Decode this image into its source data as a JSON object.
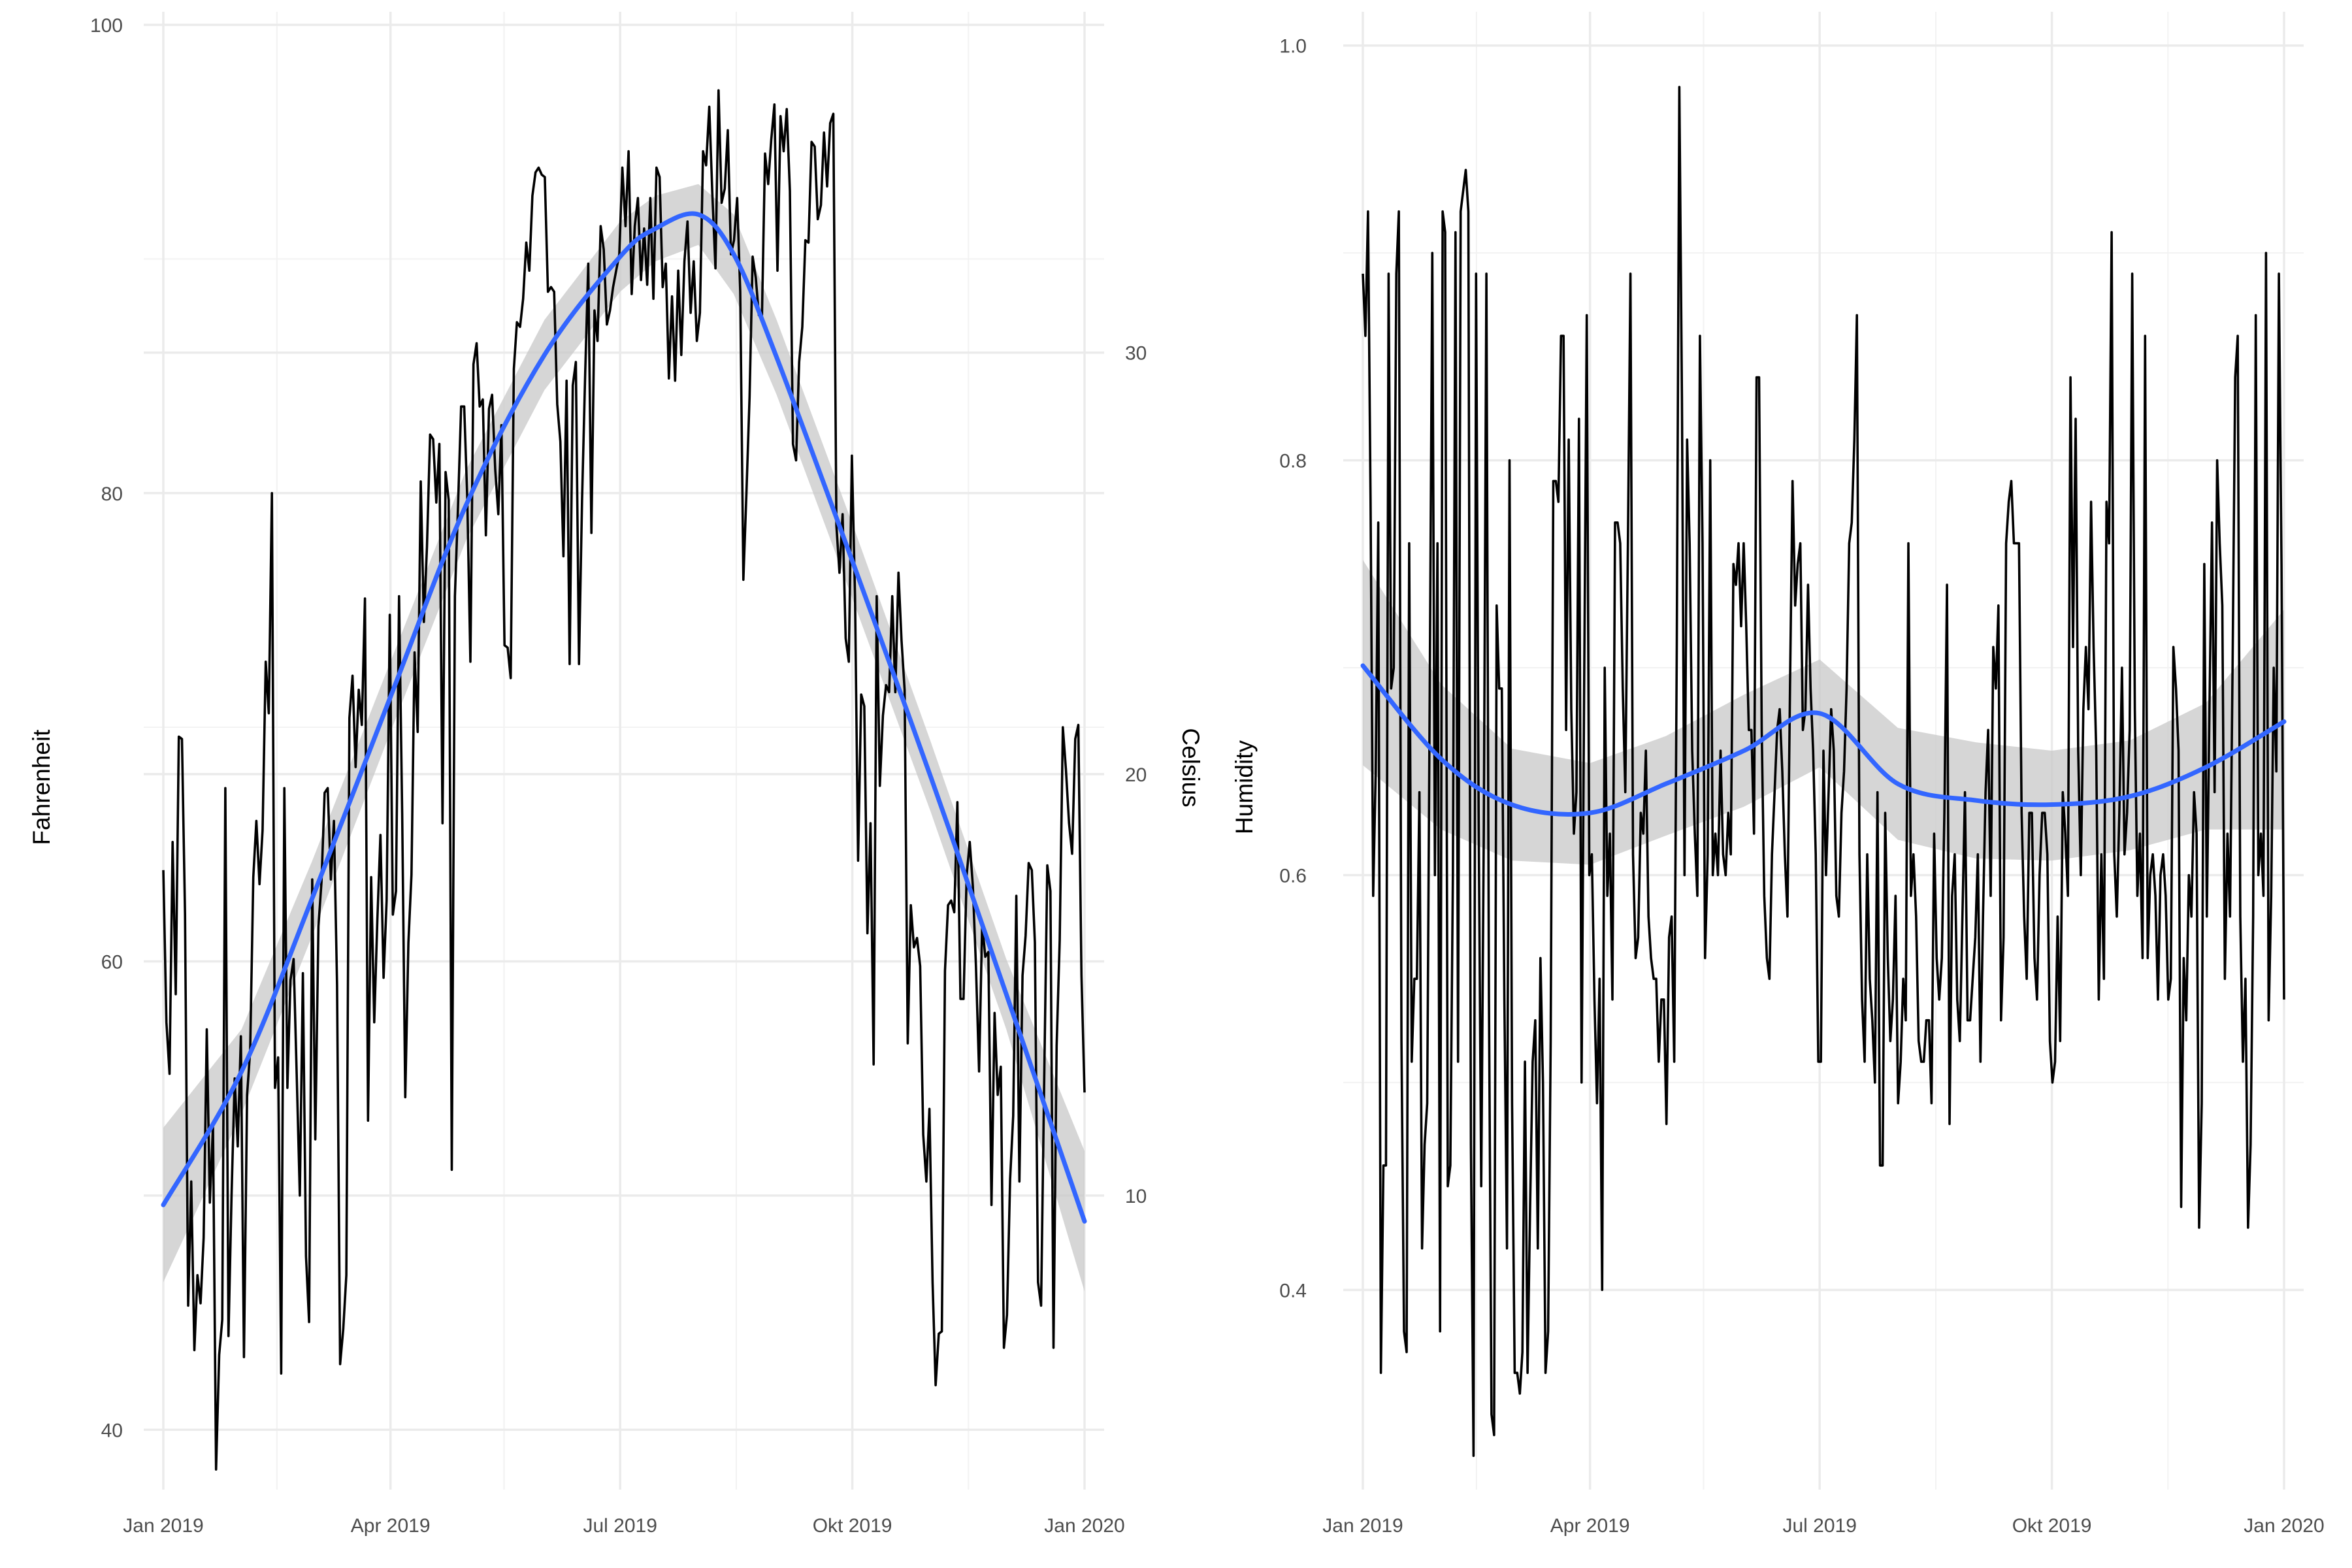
{
  "colors": {
    "raw_line": "#000000",
    "smooth_line": "#3366FF",
    "ribbon": "#C8C8C8",
    "grid_major": "#EBEBEB",
    "grid_minor": "#F2F2F2",
    "tick_text": "#4D4D4D"
  },
  "chart_data": [
    {
      "type": "line",
      "panel": "left",
      "xlabel": "",
      "ylabel": "Fahrenheit",
      "y2label": "Celsius",
      "x_ticks": [
        "Jan 2019",
        "Apr 2019",
        "Jul 2019",
        "Okt 2019",
        "Jan 2020"
      ],
      "x_range": [
        "2019-01-01",
        "2020-01-01"
      ],
      "y_ticks": [
        40,
        60,
        80,
        100
      ],
      "y2_ticks": [
        10,
        20,
        30
      ],
      "ylim": [
        38,
        100
      ],
      "y2_transform": "celsius = (fahrenheit - 32) * 5 / 9",
      "grid": true,
      "series": [
        {
          "style": "raw",
          "x_start": "2019-01-01",
          "x_end": "2020-01-01",
          "values": [
            63.9,
            57.4,
            55.2,
            65.1,
            58.6,
            69.6,
            69.5,
            62.0,
            45.3,
            50.6,
            43.4,
            46.6,
            45.4,
            48.2,
            57.1,
            49.7,
            53.0,
            38.3,
            43.2,
            44.7,
            67.4,
            44.0,
            50.0,
            55.0,
            52.1,
            56.8,
            43.1,
            54.3,
            56.2,
            63.6,
            66.0,
            63.3,
            65.6,
            72.8,
            70.6,
            80.0,
            54.6,
            55.9,
            42.4,
            67.4,
            54.6,
            59.2,
            60.1,
            55.2,
            50.0,
            59.5,
            47.4,
            44.6,
            63.5,
            52.4,
            61.5,
            63.4,
            67.2,
            67.4,
            63.5,
            66.0,
            59.0,
            42.8,
            44.3,
            46.6,
            70.4,
            72.2,
            68.3,
            71.6,
            70.1,
            75.5,
            53.2,
            63.6,
            57.4,
            61.8,
            65.4,
            59.3,
            62.6,
            74.8,
            62.0,
            63.0,
            75.6,
            66.3,
            54.2,
            60.8,
            63.7,
            73.2,
            69.8,
            80.5,
            74.5,
            77.7,
            82.5,
            82.3,
            79.6,
            82.1,
            65.9,
            80.9,
            79.7,
            51.1,
            75.6,
            79.4,
            83.7,
            83.7,
            79.7,
            72.8,
            85.5,
            86.4,
            83.7,
            84.0,
            78.2,
            83.6,
            84.2,
            81.0,
            79.1,
            82.9,
            73.5,
            73.4,
            72.1,
            85.3,
            87.3,
            87.1,
            88.3,
            90.7,
            89.5,
            92.7,
            93.7,
            93.9,
            93.6,
            93.5,
            88.6,
            88.8,
            88.6,
            83.8,
            82.2,
            77.3,
            84.8,
            72.7,
            84.6,
            85.6,
            72.7,
            79.7,
            85.1,
            89.8,
            78.3,
            87.8,
            86.5,
            91.4,
            90.4,
            87.2,
            87.8,
            88.8,
            89.5,
            90.2,
            93.9,
            91.4,
            94.6,
            88.5,
            91.4,
            92.6,
            89.1,
            91.3,
            88.9,
            92.6,
            88.3,
            93.9,
            93.5,
            88.8,
            89.8,
            84.9,
            88.4,
            84.8,
            89.5,
            85.9,
            89.9,
            91.6,
            87.7,
            89.9,
            86.5,
            87.7,
            94.6,
            94.0,
            96.5,
            92.8,
            89.6,
            97.2,
            92.4,
            93.0,
            95.5,
            90.2,
            90.8,
            92.6,
            88.6,
            76.3,
            80.0,
            84.1,
            90.1,
            89.2,
            87.6,
            87.6,
            94.5,
            93.2,
            95.1,
            96.6,
            89.5,
            96.1,
            94.6,
            96.4,
            92.9,
            82.1,
            81.4,
            85.6,
            87.1,
            90.8,
            90.7,
            95.0,
            94.8,
            91.7,
            92.3,
            95.4,
            93.1,
            95.8,
            96.2,
            78.6,
            76.6,
            79.1,
            73.8,
            72.8,
            81.6,
            75.6,
            64.3,
            71.4,
            70.9,
            61.2,
            65.9,
            55.6,
            75.6,
            67.5,
            70.5,
            71.8,
            71.5,
            75.6,
            71.5,
            76.6,
            73.7,
            71.6,
            56.5,
            62.4,
            60.6,
            61.0,
            59.8,
            52.6,
            50.6,
            53.7,
            46.3,
            41.9,
            44.1,
            44.2,
            59.6,
            62.4,
            62.6,
            62.1,
            66.8,
            58.4,
            58.4,
            63.7,
            65.1,
            63.2,
            59.8,
            55.3,
            61.6,
            60.2,
            60.4,
            49.6,
            57.8,
            54.3,
            55.5,
            43.5,
            44.9,
            50.7,
            53.4,
            62.8,
            50.6,
            59.4,
            61.1,
            64.2,
            63.9,
            60.8,
            46.3,
            45.3,
            55.0,
            64.1,
            63.0,
            43.5,
            56.4,
            60.9,
            70.0,
            68.2,
            65.9,
            64.6,
            69.5,
            70.1,
            59.4,
            54.4
          ]
        },
        {
          "style": "smooth",
          "x": [
            "2019-01-01",
            "2019-02-01",
            "2019-03-01",
            "2019-04-01",
            "2019-05-01",
            "2019-06-01",
            "2019-07-01",
            "2019-07-15",
            "2019-08-01",
            "2019-08-15",
            "2019-09-01",
            "2019-10-01",
            "2019-11-01",
            "2019-12-01",
            "2020-01-01"
          ],
          "values": [
            49.6,
            55.3,
            62.7,
            71.3,
            79.5,
            85.9,
            90.1,
            91.3,
            91.9,
            90.2,
            85.8,
            77.1,
            67.9,
            58.6,
            48.9
          ],
          "ci_low": [
            46.3,
            53.5,
            61.1,
            69.8,
            78.0,
            84.4,
            88.6,
            89.9,
            90.6,
            88.5,
            84.2,
            75.5,
            66.4,
            57.1,
            45.9
          ],
          "ci_high": [
            52.9,
            57.1,
            64.3,
            72.8,
            81.0,
            87.4,
            91.6,
            92.7,
            93.2,
            91.9,
            87.4,
            78.7,
            69.4,
            60.1,
            51.9
          ]
        }
      ]
    },
    {
      "type": "line",
      "panel": "right",
      "xlabel": "",
      "ylabel": "Humidity",
      "x_ticks": [
        "Jan 2019",
        "Apr 2019",
        "Jul 2019",
        "Okt 2019",
        "Jan 2020"
      ],
      "x_range": [
        "2019-01-01",
        "2020-01-01"
      ],
      "y_ticks": [
        0.4,
        0.6,
        0.8,
        1.0
      ],
      "ylim": [
        0.31,
        1.01
      ],
      "grid": true,
      "series": [
        {
          "style": "raw",
          "x_start": "2019-01-01",
          "x_end": "2020-01-01",
          "values": [
            0.89,
            0.86,
            0.92,
            0.78,
            0.59,
            0.65,
            0.77,
            0.36,
            0.46,
            0.46,
            0.89,
            0.69,
            0.7,
            0.89,
            0.92,
            0.52,
            0.38,
            0.37,
            0.76,
            0.51,
            0.55,
            0.55,
            0.64,
            0.42,
            0.47,
            0.49,
            0.69,
            0.9,
            0.6,
            0.76,
            0.38,
            0.92,
            0.91,
            0.45,
            0.46,
            0.6,
            0.91,
            0.51,
            0.92,
            0.93,
            0.94,
            0.92,
            0.47,
            0.32,
            0.89,
            0.63,
            0.45,
            0.62,
            0.89,
            0.54,
            0.34,
            0.33,
            0.73,
            0.69,
            0.69,
            0.54,
            0.42,
            0.8,
            0.49,
            0.36,
            0.36,
            0.35,
            0.37,
            0.51,
            0.36,
            0.44,
            0.51,
            0.53,
            0.42,
            0.56,
            0.5,
            0.36,
            0.38,
            0.52,
            0.79,
            0.79,
            0.78,
            0.86,
            0.86,
            0.67,
            0.81,
            0.68,
            0.62,
            0.64,
            0.82,
            0.5,
            0.69,
            0.87,
            0.6,
            0.61,
            0.54,
            0.49,
            0.55,
            0.4,
            0.7,
            0.59,
            0.62,
            0.54,
            0.77,
            0.77,
            0.76,
            0.69,
            0.64,
            0.76,
            0.89,
            0.61,
            0.56,
            0.57,
            0.63,
            0.62,
            0.66,
            0.58,
            0.56,
            0.55,
            0.55,
            0.51,
            0.54,
            0.54,
            0.48,
            0.57,
            0.58,
            0.51,
            0.71,
            0.98,
            0.83,
            0.6,
            0.81,
            0.76,
            0.66,
            0.62,
            0.59,
            0.86,
            0.76,
            0.56,
            0.61,
            0.8,
            0.6,
            0.62,
            0.6,
            0.66,
            0.61,
            0.6,
            0.63,
            0.61,
            0.75,
            0.74,
            0.76,
            0.72,
            0.76,
            0.72,
            0.67,
            0.67,
            0.62,
            0.84,
            0.84,
            0.67,
            0.59,
            0.56,
            0.55,
            0.61,
            0.64,
            0.67,
            0.68,
            0.65,
            0.61,
            0.58,
            0.69,
            0.79,
            0.73,
            0.75,
            0.76,
            0.67,
            0.68,
            0.74,
            0.69,
            0.66,
            0.61,
            0.51,
            0.51,
            0.66,
            0.6,
            0.64,
            0.68,
            0.66,
            0.59,
            0.58,
            0.63,
            0.65,
            0.69,
            0.76,
            0.77,
            0.81,
            0.87,
            0.61,
            0.54,
            0.51,
            0.61,
            0.55,
            0.53,
            0.5,
            0.64,
            0.46,
            0.46,
            0.63,
            0.56,
            0.52,
            0.54,
            0.59,
            0.49,
            0.51,
            0.55,
            0.53,
            0.76,
            0.59,
            0.61,
            0.58,
            0.52,
            0.51,
            0.51,
            0.53,
            0.53,
            0.49,
            0.62,
            0.56,
            0.54,
            0.56,
            0.63,
            0.74,
            0.48,
            0.59,
            0.61,
            0.54,
            0.52,
            0.58,
            0.64,
            0.53,
            0.53,
            0.55,
            0.57,
            0.61,
            0.51,
            0.58,
            0.64,
            0.67,
            0.59,
            0.71,
            0.69,
            0.73,
            0.53,
            0.57,
            0.76,
            0.78,
            0.79,
            0.76,
            0.76,
            0.76,
            0.63,
            0.58,
            0.55,
            0.63,
            0.63,
            0.56,
            0.54,
            0.6,
            0.63,
            0.63,
            0.61,
            0.52,
            0.5,
            0.51,
            0.58,
            0.52,
            0.64,
            0.62,
            0.59,
            0.84,
            0.71,
            0.82,
            0.66,
            0.6,
            0.68,
            0.71,
            0.68,
            0.78,
            0.71,
            0.66,
            0.54,
            0.61,
            0.55,
            0.78,
            0.76,
            0.91,
            0.61,
            0.58,
            0.63,
            0.7,
            0.61,
            0.63,
            0.67,
            0.89,
            0.68,
            0.59,
            0.62,
            0.56,
            0.86,
            0.56,
            0.6,
            0.61,
            0.59,
            0.54,
            0.6,
            0.61,
            0.59,
            0.54,
            0.55,
            0.71,
            0.69,
            0.66,
            0.44,
            0.56,
            0.53,
            0.6,
            0.58,
            0.64,
            0.62,
            0.43,
            0.49,
            0.75,
            0.58,
            0.68,
            0.77,
            0.64,
            0.8,
            0.76,
            0.73,
            0.55,
            0.62,
            0.58,
            0.7,
            0.84,
            0.86,
            0.58,
            0.51,
            0.55,
            0.43,
            0.47,
            0.58,
            0.87,
            0.6,
            0.62,
            0.59,
            0.9,
            0.53,
            0.59,
            0.7,
            0.65,
            0.89,
            0.75,
            0.54
          ]
        },
        {
          "style": "smooth",
          "x": [
            "2019-01-01",
            "2019-02-01",
            "2019-03-01",
            "2019-04-01",
            "2019-05-01",
            "2019-06-01",
            "2019-07-01",
            "2019-08-01",
            "2019-09-01",
            "2019-10-01",
            "2019-11-01",
            "2019-12-01",
            "2020-01-01"
          ],
          "values": [
            0.701,
            0.656,
            0.634,
            0.63,
            0.644,
            0.66,
            0.678,
            0.644,
            0.636,
            0.634,
            0.638,
            0.652,
            0.674
          ],
          "ci_low": [
            0.653,
            0.622,
            0.607,
            0.605,
            0.619,
            0.633,
            0.652,
            0.617,
            0.608,
            0.607,
            0.612,
            0.622,
            0.622
          ],
          "ci_high": [
            0.752,
            0.692,
            0.661,
            0.654,
            0.667,
            0.687,
            0.704,
            0.671,
            0.664,
            0.66,
            0.665,
            0.683,
            0.728
          ]
        }
      ]
    }
  ]
}
